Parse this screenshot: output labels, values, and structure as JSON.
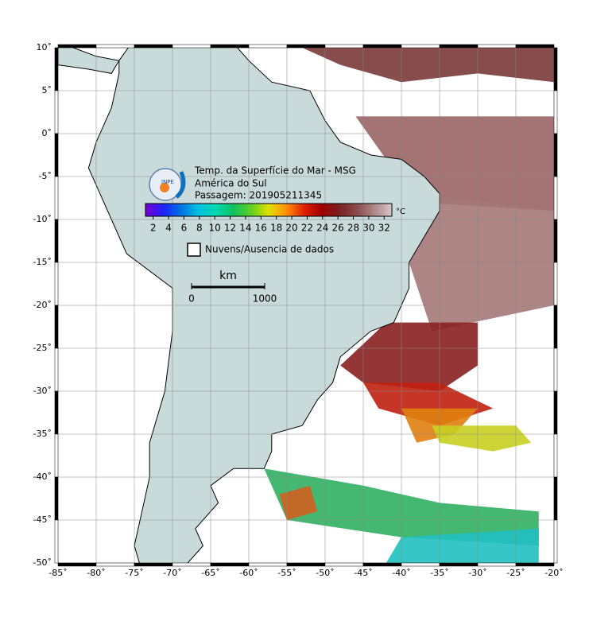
{
  "map": {
    "lonlim": [
      -85,
      -20
    ],
    "latlim": [
      -50,
      10
    ],
    "lonticks": [
      {
        "value": -85,
        "label": "-85˚"
      },
      {
        "value": -80,
        "label": "-80˚"
      },
      {
        "value": -75,
        "label": "-75˚"
      },
      {
        "value": -70,
        "label": "-70˚"
      },
      {
        "value": -65,
        "label": "-65˚"
      },
      {
        "value": -60,
        "label": "-60˚"
      },
      {
        "value": -55,
        "label": "-55˚"
      },
      {
        "value": -50,
        "label": "-50˚"
      },
      {
        "value": -45,
        "label": "-45˚"
      },
      {
        "value": -40,
        "label": "-40˚"
      },
      {
        "value": -35,
        "label": "-35˚"
      },
      {
        "value": -30,
        "label": "-30˚"
      },
      {
        "value": -25,
        "label": "-25˚"
      },
      {
        "value": -20,
        "label": "-20˚"
      }
    ],
    "latticks": [
      {
        "value": 10,
        "label": "10˚"
      },
      {
        "value": 5,
        "label": "5˚"
      },
      {
        "value": 0,
        "label": "0˚"
      },
      {
        "value": -5,
        "label": "-5˚"
      },
      {
        "value": -10,
        "label": "-10˚"
      },
      {
        "value": -15,
        "label": "-15˚"
      },
      {
        "value": -20,
        "label": "-20˚"
      },
      {
        "value": -25,
        "label": "-25˚"
      },
      {
        "value": -30,
        "label": "-30˚"
      },
      {
        "value": -35,
        "label": "-35˚"
      },
      {
        "value": -40,
        "label": "-40˚"
      },
      {
        "value": -45,
        "label": "-45˚"
      },
      {
        "value": -50,
        "label": "-50˚"
      }
    ]
  },
  "legend": {
    "title_lines": [
      "Temp. da Superfície do Mar - MSG",
      "América do Sul",
      "Passagem: 201905211345"
    ],
    "logo_text": "INPE",
    "colorbar": {
      "lim": [
        1,
        33
      ],
      "ticks": [
        2,
        4,
        6,
        8,
        10,
        12,
        14,
        16,
        18,
        20,
        22,
        24,
        26,
        28,
        30,
        32
      ],
      "unit": "°C",
      "colors": [
        "#7a00c8",
        "#2020ff",
        "#0070e0",
        "#00c0e0",
        "#00d8b0",
        "#10c060",
        "#60d020",
        "#e0e000",
        "#ff9000",
        "#e02000",
        "#a00000",
        "#7a2020",
        "#8a4a4a",
        "#b08888",
        "#d8c8c8"
      ]
    },
    "no_data_label": "Nuvens/Ausencia de dados",
    "scale_bar": {
      "unit": "km",
      "ticks": [
        0,
        1000
      ]
    }
  }
}
